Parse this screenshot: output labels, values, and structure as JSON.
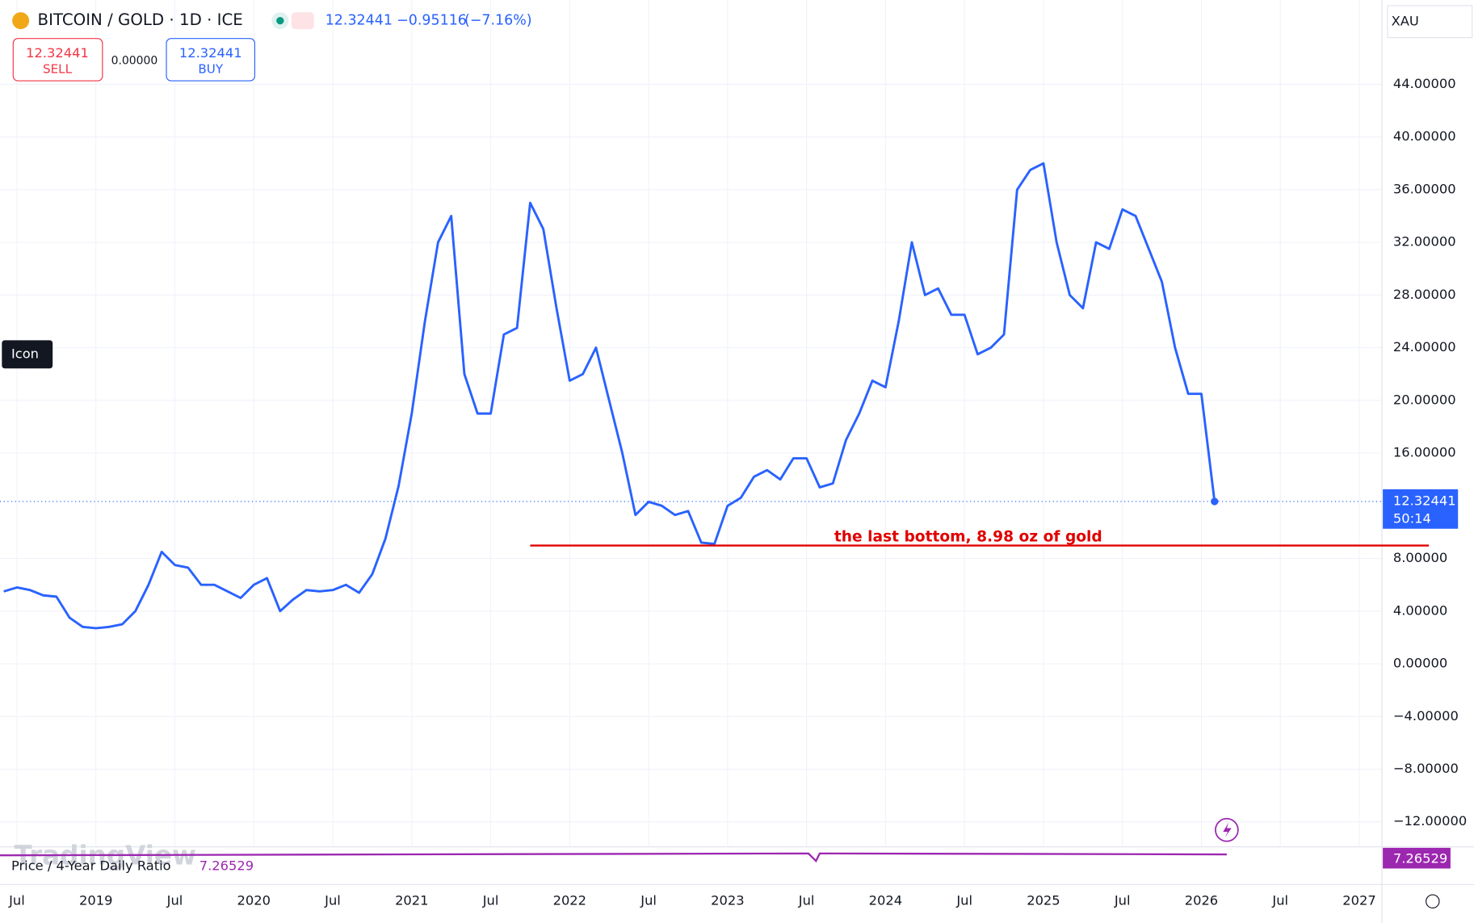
{
  "header": {
    "symbol": "BITCOIN / GOLD · 1D · ICE",
    "last": "12.32441",
    "change": "−0.95116",
    "change_pct": "(−7.16%)",
    "sell_price": "12.32441",
    "sell": "SELL",
    "spread": "0.00000",
    "buy_price": "12.32441",
    "buy": "BUY",
    "currency": "XAU",
    "tooltip": "Icon",
    "countdown": "50:14",
    "watermark": "TradingView"
  },
  "indicator": {
    "name": "Price / 4-Year Daily Ratio",
    "value": 7.26529,
    "color": "#9c27b0"
  },
  "chart_data": {
    "type": "line",
    "x": [
      "2018-06",
      "2018-07",
      "2018-08",
      "2018-09",
      "2018-10",
      "2018-11",
      "2018-12",
      "2019-01",
      "2019-02",
      "2019-03",
      "2019-04",
      "2019-05",
      "2019-06",
      "2019-07",
      "2019-08",
      "2019-09",
      "2019-10",
      "2019-11",
      "2019-12",
      "2020-01",
      "2020-02",
      "2020-03",
      "2020-04",
      "2020-05",
      "2020-06",
      "2020-07",
      "2020-08",
      "2020-09",
      "2020-10",
      "2020-11",
      "2020-12",
      "2021-01",
      "2021-02",
      "2021-03",
      "2021-04",
      "2021-05",
      "2021-06",
      "2021-07",
      "2021-08",
      "2021-09",
      "2021-10",
      "2021-11",
      "2021-12",
      "2022-01",
      "2022-02",
      "2022-03",
      "2022-04",
      "2022-05",
      "2022-06",
      "2022-07",
      "2022-08",
      "2022-09",
      "2022-10",
      "2022-11",
      "2022-12",
      "2023-01",
      "2023-02",
      "2023-03",
      "2023-04",
      "2023-05",
      "2023-06",
      "2023-07",
      "2023-08",
      "2023-09",
      "2023-10",
      "2023-11",
      "2023-12",
      "2024-01",
      "2024-02",
      "2024-03",
      "2024-04",
      "2024-05",
      "2024-06",
      "2024-07",
      "2024-08",
      "2024-09",
      "2024-10",
      "2024-11",
      "2024-12",
      "2025-01",
      "2025-02",
      "2025-03",
      "2025-04",
      "2025-05",
      "2025-06",
      "2025-07",
      "2025-08",
      "2025-09",
      "2025-10",
      "2025-11",
      "2025-12",
      "2026-01",
      "2026-02"
    ],
    "series": [
      {
        "name": "BITCOIN / GOLD",
        "color": "#2962ff",
        "values": [
          5.5,
          5.8,
          5.6,
          5.2,
          5.1,
          3.5,
          2.8,
          2.7,
          2.8,
          3.0,
          4.0,
          6.0,
          8.5,
          7.5,
          7.3,
          6.0,
          6.0,
          5.5,
          5.0,
          6.0,
          6.5,
          4.0,
          4.9,
          5.6,
          5.5,
          5.6,
          6.0,
          5.4,
          6.8,
          9.5,
          13.5,
          19.0,
          26.0,
          32.0,
          34.0,
          22.0,
          19.0,
          19.0,
          25.0,
          25.5,
          35.0,
          33.0,
          27.0,
          21.5,
          22.0,
          24.0,
          20.0,
          16.0,
          11.3,
          12.3,
          12.0,
          11.3,
          11.6,
          9.2,
          9.1,
          12.0,
          12.6,
          14.2,
          14.7,
          14.0,
          15.6,
          15.6,
          13.4,
          13.7,
          17.0,
          19.0,
          21.5,
          21.0,
          26.0,
          32.0,
          28.0,
          28.5,
          26.5,
          26.5,
          23.5,
          24.0,
          25.0,
          36.0,
          37.5,
          38.0,
          32.0,
          28.0,
          27.0,
          32.0,
          31.5,
          34.5,
          34.0,
          31.5,
          29.0,
          24.0,
          20.5,
          20.5,
          12.32441
        ]
      }
    ],
    "annotations": [
      {
        "text": "the last bottom, 8.98 oz of gold",
        "value": 8.98,
        "x": "2021-10",
        "color": "#e00000"
      }
    ],
    "ylim": [
      -13.9,
      50.4
    ],
    "yticks": [
      {
        "value": -12,
        "label": "−12.00000"
      },
      {
        "value": -8,
        "label": "−8.00000"
      },
      {
        "value": -4,
        "label": "−4.00000"
      },
      {
        "value": 0,
        "label": "0.00000"
      },
      {
        "value": 4,
        "label": "4.00000"
      },
      {
        "value": 8,
        "label": "8.00000"
      },
      {
        "value": 16,
        "label": "16.00000"
      },
      {
        "value": 20,
        "label": "20.00000"
      },
      {
        "value": 24,
        "label": "24.00000"
      },
      {
        "value": 28,
        "label": "28.00000"
      },
      {
        "value": 32,
        "label": "32.00000"
      },
      {
        "value": 36,
        "label": "36.00000"
      },
      {
        "value": 40,
        "label": "40.00000"
      },
      {
        "value": 44,
        "label": "44.00000"
      }
    ],
    "xticks": [
      {
        "value": "2018-07",
        "label": "Jul"
      },
      {
        "value": "2019-01",
        "label": "2019"
      },
      {
        "value": "2019-07",
        "label": "Jul"
      },
      {
        "value": "2020-01",
        "label": "2020"
      },
      {
        "value": "2020-07",
        "label": "Jul"
      },
      {
        "value": "2021-01",
        "label": "2021"
      },
      {
        "value": "2021-07",
        "label": "Jul"
      },
      {
        "value": "2022-01",
        "label": "2022"
      },
      {
        "value": "2022-07",
        "label": "Jul"
      },
      {
        "value": "2023-01",
        "label": "2023"
      },
      {
        "value": "2023-07",
        "label": "Jul"
      },
      {
        "value": "2024-01",
        "label": "2024"
      },
      {
        "value": "2024-07",
        "label": "Jul"
      },
      {
        "value": "2025-01",
        "label": "2025"
      },
      {
        "value": "2025-07",
        "label": "Jul"
      },
      {
        "value": "2026-01",
        "label": "2026"
      },
      {
        "value": "2026-07",
        "label": "Jul"
      },
      {
        "value": "2027-01",
        "label": "2027"
      }
    ],
    "grid": true
  }
}
